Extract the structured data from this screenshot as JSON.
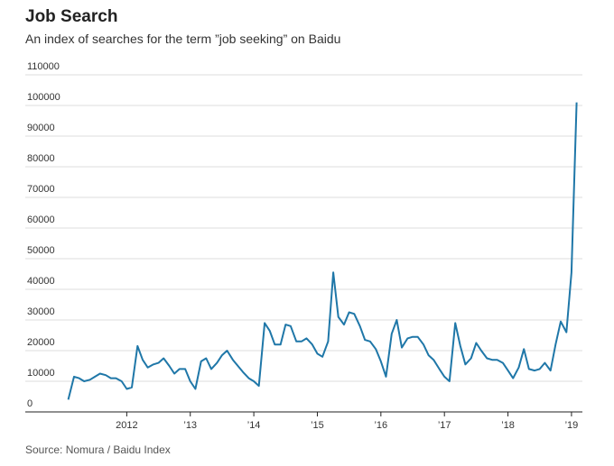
{
  "chart_data": {
    "type": "line",
    "title": "Job Search",
    "subtitle": "An index of searches for the term ”job seeking” on Baidu",
    "source": "Source: Nomura / Baidu Index",
    "xlabel": "",
    "ylabel": "",
    "ylim": [
      0,
      110000
    ],
    "y_ticks": [
      0,
      10000,
      20000,
      30000,
      40000,
      50000,
      60000,
      70000,
      80000,
      90000,
      100000,
      110000
    ],
    "y_tick_labels": [
      "0",
      "10000",
      "20000",
      "30000",
      "40000",
      "50000",
      "60000",
      "70000",
      "80000",
      "90000",
      "100000",
      "110000"
    ],
    "x_start": 2011.0,
    "x_end": 2019.2,
    "x_ticks": [
      2012,
      2013,
      2014,
      2015,
      2016,
      2017,
      2018,
      2019
    ],
    "x_tick_labels": [
      "2012",
      "’13",
      "’14",
      "’15",
      "’16",
      "’17",
      "’18",
      "’19"
    ],
    "grid": true,
    "series": [
      {
        "name": "job seeking",
        "color": "#1f77a8",
        "x": [
          2011.08,
          2011.17,
          2011.25,
          2011.33,
          2011.42,
          2011.5,
          2011.58,
          2011.67,
          2011.75,
          2011.83,
          2011.92,
          2012.0,
          2012.08,
          2012.17,
          2012.25,
          2012.33,
          2012.42,
          2012.5,
          2012.58,
          2012.67,
          2012.75,
          2012.83,
          2012.92,
          2013.0,
          2013.08,
          2013.17,
          2013.25,
          2013.33,
          2013.42,
          2013.5,
          2013.58,
          2013.67,
          2013.75,
          2013.83,
          2013.92,
          2014.0,
          2014.08,
          2014.17,
          2014.25,
          2014.33,
          2014.42,
          2014.5,
          2014.58,
          2014.67,
          2014.75,
          2014.83,
          2014.92,
          2015.0,
          2015.08,
          2015.17,
          2015.25,
          2015.33,
          2015.42,
          2015.5,
          2015.58,
          2015.67,
          2015.75,
          2015.83,
          2015.92,
          2016.0,
          2016.08,
          2016.17,
          2016.25,
          2016.33,
          2016.42,
          2016.5,
          2016.58,
          2016.67,
          2016.75,
          2016.83,
          2016.92,
          2017.0,
          2017.08,
          2017.17,
          2017.25,
          2017.33,
          2017.42,
          2017.5,
          2017.58,
          2017.67,
          2017.75,
          2017.83,
          2017.92,
          2018.0,
          2018.08,
          2018.17,
          2018.25,
          2018.33,
          2018.42,
          2018.5,
          2018.58,
          2018.67,
          2018.75,
          2018.83,
          2018.92,
          2019.0,
          2019.08
        ],
        "values": [
          4000,
          11500,
          11000,
          10000,
          10500,
          11500,
          12500,
          12000,
          11000,
          11000,
          10000,
          7500,
          8000,
          21500,
          17000,
          14500,
          15500,
          16000,
          17500,
          15000,
          12500,
          14000,
          14000,
          10000,
          7500,
          16500,
          17500,
          14000,
          16000,
          18500,
          20000,
          17000,
          15000,
          13000,
          11000,
          10000,
          8500,
          29000,
          26500,
          22000,
          22000,
          28500,
          28000,
          23000,
          23000,
          24000,
          22000,
          19000,
          18000,
          23000,
          45500,
          31000,
          28500,
          32500,
          32000,
          28000,
          23500,
          23000,
          20500,
          16500,
          11500,
          25500,
          30000,
          21000,
          24000,
          24500,
          24500,
          22000,
          18500,
          17000,
          14000,
          11500,
          10000,
          29000,
          21500,
          15500,
          17500,
          22500,
          20000,
          17500,
          17000,
          17000,
          16000,
          13500,
          11000,
          14500,
          20500,
          14000,
          13500,
          14000,
          16000,
          13500,
          22000,
          29500,
          26000,
          45500,
          101000
        ]
      }
    ]
  }
}
